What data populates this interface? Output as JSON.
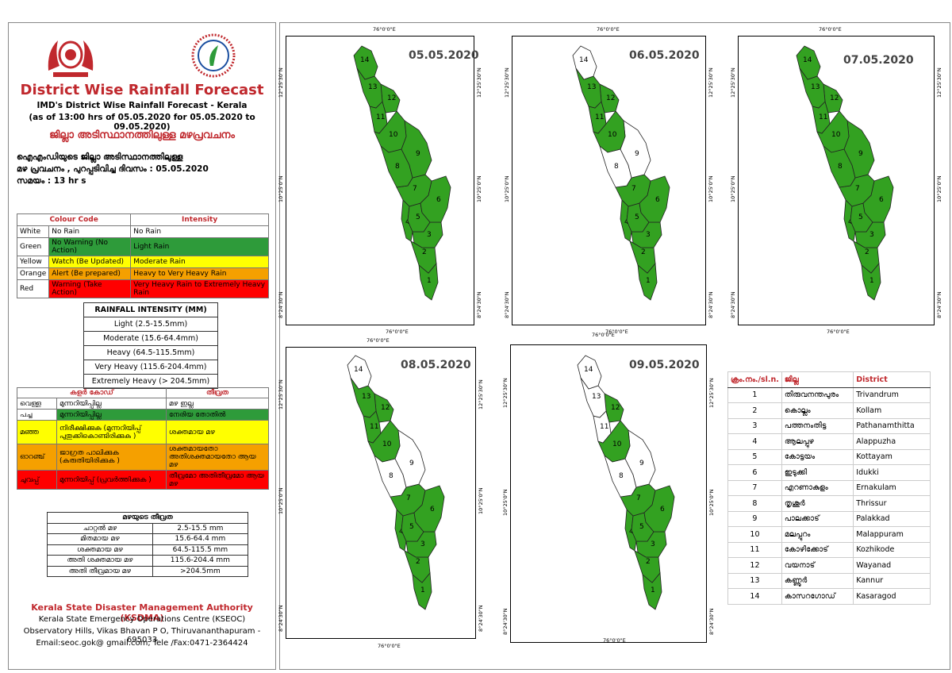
{
  "header": {
    "title": "District Wise Rainfall Forecast",
    "sub1": "IMD's District Wise Rainfall Forecast - Kerala",
    "sub2": "(as of 13:00 hrs of 05.05.2020  for 05.05.2020  to 09.05.2020)",
    "ml_title": "ജില്ലാ അടിസ്ഥാനത്തിലുള്ള മഴപ്രവചനം",
    "ml_line1": "ഐഎംഡിയുടെ ജില്ലാ      അടിസ്ഥാനത്തിലുള്ള",
    "ml_line2": "മഴ പ്രവചനം    , പുറപ്പടിവിച്ച       ദിവസം : 05.05.2020",
    "ml_line3": "സമയം : 13    hr s"
  },
  "colour_code": {
    "col1": "Colour Code",
    "col2": "Intensity",
    "rows": [
      {
        "colour": "White",
        "code": "No Rain",
        "intensity": "No Rain",
        "cls": "bg-white"
      },
      {
        "colour": "Green",
        "code": "No Warning (No Action)",
        "intensity": "Light Rain",
        "cls": "bg-green"
      },
      {
        "colour": "Yellow",
        "code": "Watch (Be Updated)",
        "intensity": "Moderate Rain",
        "cls": "bg-yellow"
      },
      {
        "colour": "Orange",
        "code": "Alert (Be prepared)",
        "intensity": "Heavy to Very Heavy Rain",
        "cls": "bg-orange"
      },
      {
        "colour": "Red",
        "code": "Warning (Take Action)",
        "intensity": "Very Heavy Rain to Extremely Heavy Rain",
        "cls": "bg-red"
      }
    ]
  },
  "rainfall_intensity": {
    "title": "RAINFALL INTENSITY (MM)",
    "rows": [
      "Light (2.5-15.5mm)",
      "Moderate (15.6-64.4mm)",
      "Heavy (64.5-115.5mm)",
      "Very Heavy (115.6-204.4mm)",
      "Extremely Heavy (> 204.5mm)"
    ]
  },
  "ml_colour_code": {
    "col1": "കളർ കോഡ്",
    "col2": "തീവ്രത",
    "rows": [
      {
        "colour": "വെള്ള",
        "code": "മുന്നറിയിപ്പില്ല",
        "intensity": "മഴ ഇല്ല",
        "cls": "bg-white"
      },
      {
        "colour": "പച്ച",
        "code": "മുന്നറിയിപ്പില്ല",
        "intensity": "നേരിയ തോതിൽ",
        "cls": "bg-green"
      },
      {
        "colour": "മഞ്ഞ",
        "code": "നിരീക്ഷിക്കുക (മുന്നറിയിപ്പ് പുതുക്കികൊണ്ടിരിക്കുക )",
        "intensity": "ശക്തമായ മഴ",
        "cls": "bg-yellow"
      },
      {
        "colour": "ഓറഞ്ച്",
        "code": "ജാഗ്രത പാലിക്കുക (കരുതിയിരിക്കുക )",
        "intensity": "ശക്തമായതോ അതിശക്തമായതോ ആയ മഴ",
        "cls": "bg-orange"
      },
      {
        "colour": "ചുവപ്പ്",
        "code": "മുന്നറിയിപ്പ് (പ്രവർത്തിക്കുക )",
        "intensity": "തീവ്രമോ അതിതീവ്രമോ ആയ മഴ",
        "cls": "bg-red"
      }
    ]
  },
  "ml_intensity": {
    "title": "മഴയുടെ തീവ്രത",
    "rows": [
      {
        "label": "ചാറ്റൽ മഴ",
        "range": "2.5-15.5 mm"
      },
      {
        "label": "മിതമായ മഴ",
        "range": "15.6-64.4 mm"
      },
      {
        "label": "ശക്തമായ മഴ",
        "range": "64.5-115.5 mm"
      },
      {
        "label": "അതി ശക്തമായ മഴ",
        "range": "115.6-204.4 mm"
      },
      {
        "label": "അതി തീവ്രമായ മഴ",
        "range": ">204.5mm"
      }
    ]
  },
  "footer": {
    "org": "Kerala State Disaster Management Authority (KSDMA)",
    "centre": "Kerala State Emergency Operations Centre (KSEOC)",
    "address": "Observatory Hills, Vikas Bhavan P O, Thiruvananthapuram - 695033",
    "contact": "Email:seoc.gok@ gmail.com, Tele /Fax:0471-2364424"
  },
  "map_coords": {
    "lon": "76°0'0\"E",
    "lat1": "12°25'30\"N",
    "lat2": "10°25'0\"N",
    "lat3": "8°24'30\"N"
  },
  "maps": [
    {
      "date": "05.05.2020",
      "white": []
    },
    {
      "date": "06.05.2020",
      "white": [
        14,
        9,
        8
      ]
    },
    {
      "date": "07.05.2020",
      "white": []
    },
    {
      "date": "08.05.2020",
      "white": [
        14,
        9,
        8
      ]
    },
    {
      "date": "09.05.2020",
      "white": [
        14,
        13,
        11,
        9,
        8
      ]
    }
  ],
  "colors": {
    "green": "#33a121",
    "white": "#ffffff"
  },
  "district_table": {
    "col1": "ക്രം.നം./sl.n.",
    "col2": "ജില്ല",
    "col3": "District",
    "rows": [
      {
        "n": "1",
        "ml": "തിരുവനന്തപുരം",
        "en": "Trivandrum"
      },
      {
        "n": "2",
        "ml": "കൊല്ലം",
        "en": "Kollam"
      },
      {
        "n": "3",
        "ml": "പത്തനംതിട്ട",
        "en": "Pathanamthitta"
      },
      {
        "n": "4",
        "ml": "ആലപ്പുഴ",
        "en": "Alappuzha"
      },
      {
        "n": "5",
        "ml": "കോട്ടയം",
        "en": "Kottayam"
      },
      {
        "n": "6",
        "ml": "ഇടുക്കി",
        "en": "Idukki"
      },
      {
        "n": "7",
        "ml": "എറണാകുളം",
        "en": "Ernakulam"
      },
      {
        "n": "8",
        "ml": "തൃശൂർ",
        "en": "Thrissur"
      },
      {
        "n": "9",
        "ml": "പാലക്കാട്",
        "en": "Palakkad"
      },
      {
        "n": "10",
        "ml": "മലപ്പുറം",
        "en": "Malappuram"
      },
      {
        "n": "11",
        "ml": "കോഴിക്കോട്",
        "en": "Kozhikode"
      },
      {
        "n": "12",
        "ml": "വയനാട്",
        "en": "Wayanad"
      },
      {
        "n": "13",
        "ml": "കണ്ണൂർ",
        "en": "Kannur"
      },
      {
        "n": "14",
        "ml": "കാസറഗോഡ്",
        "en": "Kasaragod"
      }
    ]
  }
}
